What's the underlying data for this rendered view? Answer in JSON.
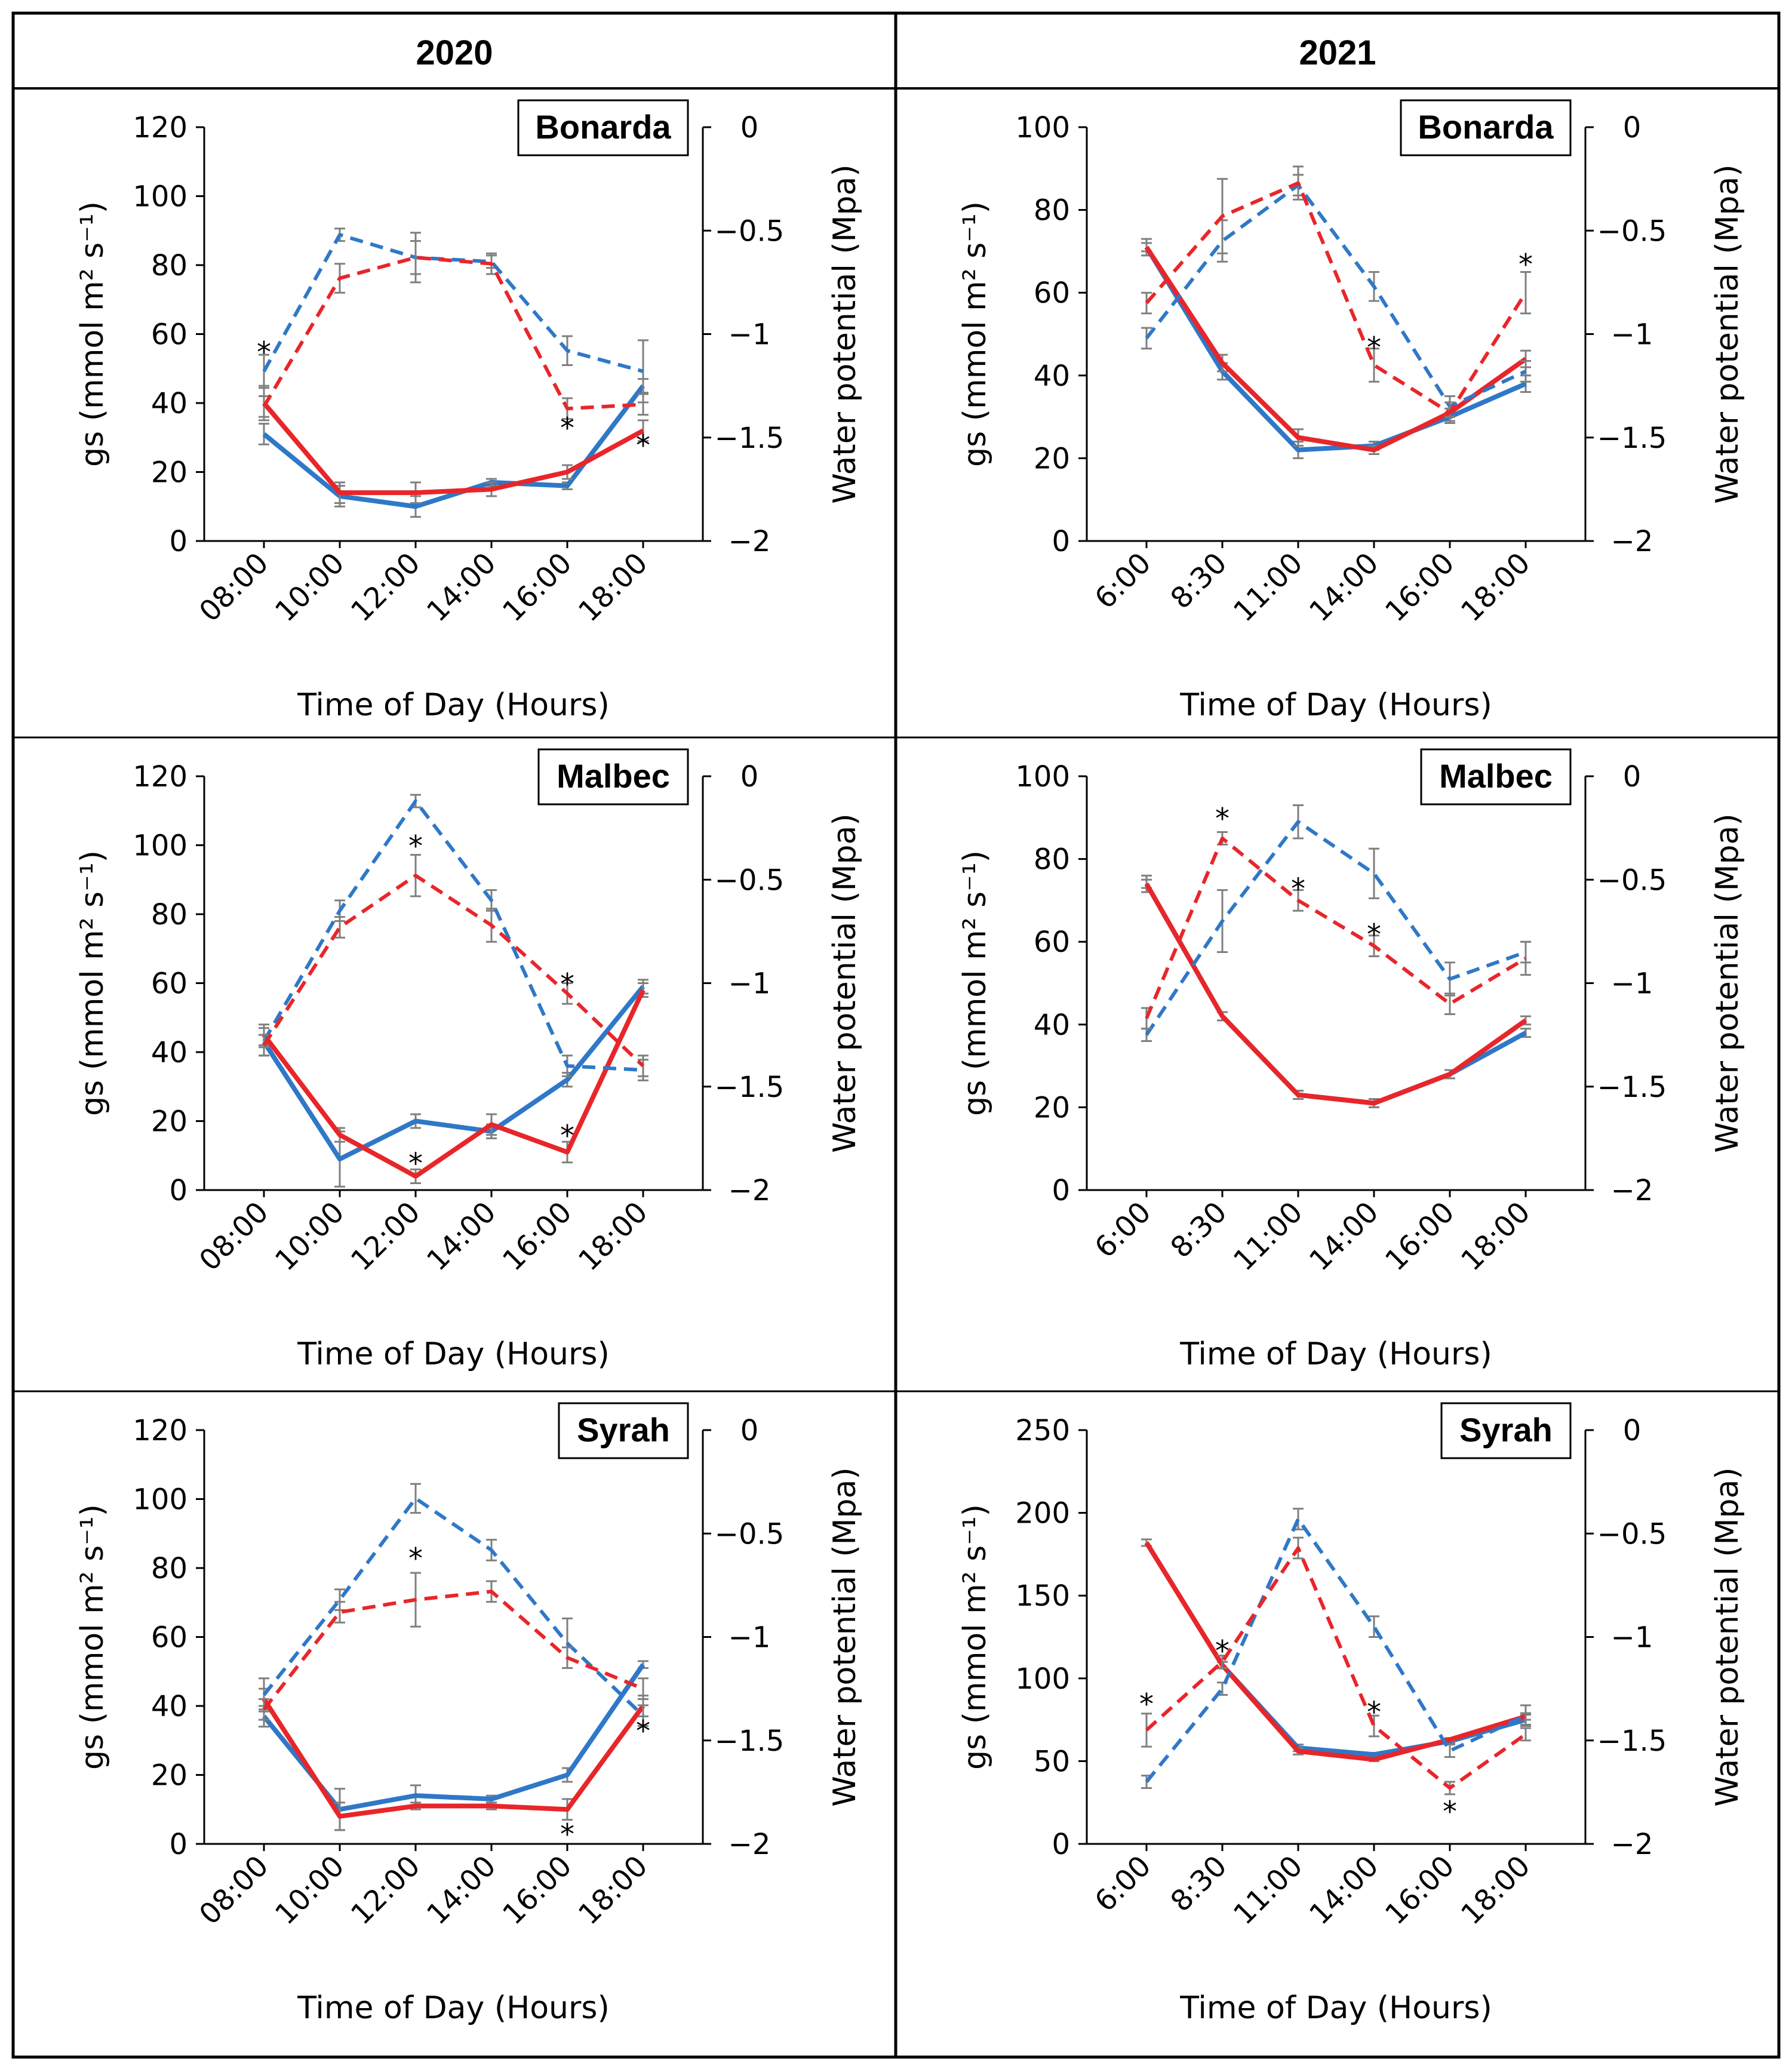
{
  "header": {
    "col1": "2020",
    "col2": "2021"
  },
  "colors": {
    "series_a": "#2f78c7",
    "series_b": "#e8262a",
    "error_bar": "#7f7f7f",
    "frame": "#000000"
  },
  "labels": {
    "x": "Time of Day (Hours)",
    "y_left": "gs (mmol m² s⁻¹)",
    "y_right": "Water potential (Mpa)",
    "star": "*"
  },
  "chart_data": [
    {
      "type": "line",
      "year": "2020",
      "title": "Bonarda",
      "categories": [
        "08:00",
        "10:00",
        "12:00",
        "14:00",
        "16:00",
        "18:00"
      ],
      "ylim": [
        0,
        120
      ],
      "yticks": [
        0,
        20,
        40,
        60,
        80,
        100,
        120
      ],
      "y2lim": [
        -2,
        0
      ],
      "y2ticks": [
        "0",
        "−0.5",
        "−1",
        "−1.5",
        "−2"
      ],
      "series": [
        {
          "name": "gs blue",
          "axis": "left",
          "style": "solid",
          "color": "#2f78c7",
          "values": [
            31,
            13,
            10,
            17,
            16,
            45
          ],
          "err": [
            3,
            3,
            3,
            1,
            1,
            2
          ]
        },
        {
          "name": "gs red",
          "axis": "left",
          "style": "solid",
          "color": "#e8262a",
          "values": [
            40,
            14,
            14,
            15,
            20,
            32
          ],
          "err": [
            5,
            3,
            3,
            2,
            2,
            3
          ]
        },
        {
          "name": "Ψ blue",
          "axis": "right",
          "style": "dashed",
          "color": "#2f78c7",
          "values": [
            -1.18,
            -0.52,
            -0.63,
            -0.65,
            -1.08,
            -1.18
          ],
          "err": [
            0.08,
            0.03,
            0.08,
            0.03,
            0.07,
            0.15
          ]
        },
        {
          "name": "Ψ red",
          "axis": "right",
          "style": "dashed",
          "color": "#e8262a",
          "values": [
            -1.35,
            -0.73,
            -0.63,
            -0.66,
            -1.36,
            -1.34
          ],
          "err": [
            0.05,
            0.07,
            0.12,
            0.05,
            0.05,
            0.05
          ]
        }
      ],
      "stars": [
        {
          "x": 0,
          "y": 55
        },
        {
          "x": 4,
          "y": 33
        },
        {
          "x": 5,
          "y": 28
        }
      ]
    },
    {
      "type": "line",
      "year": "2021",
      "title": "Bonarda",
      "categories": [
        "6:00",
        "8:30",
        "11:00",
        "14:00",
        "16:00",
        "18:00"
      ],
      "ylim": [
        0,
        100
      ],
      "yticks": [
        0,
        20,
        40,
        60,
        80,
        100
      ],
      "y2lim": [
        -2,
        0
      ],
      "y2ticks": [
        "0",
        "−0.5",
        "−1",
        "−1.5",
        "−2"
      ],
      "series": [
        {
          "name": "gs blue",
          "axis": "left",
          "style": "solid",
          "color": "#2f78c7",
          "values": [
            71,
            41,
            22,
            23,
            30,
            38
          ],
          "err": [
            2,
            2,
            2,
            1,
            1,
            2
          ]
        },
        {
          "name": "gs red",
          "axis": "left",
          "style": "solid",
          "color": "#e8262a",
          "values": [
            71,
            43,
            25,
            22,
            31,
            44
          ],
          "err": [
            1,
            2,
            2,
            1,
            1,
            2
          ]
        },
        {
          "name": "Ψ blue",
          "axis": "right",
          "style": "dashed",
          "color": "#2f78c7",
          "values": [
            -1.02,
            -0.55,
            -0.28,
            -0.77,
            -1.35,
            -1.18
          ],
          "err": [
            0.05,
            0.1,
            0.05,
            0.07,
            0.05,
            0.05
          ]
        },
        {
          "name": "Ψ red",
          "axis": "right",
          "style": "dashed",
          "color": "#e8262a",
          "values": [
            -0.85,
            -0.43,
            -0.27,
            -1.15,
            -1.38,
            -0.8
          ],
          "err": [
            0.05,
            0.18,
            0.08,
            0.08,
            0.05,
            0.1
          ]
        }
      ],
      "stars": [
        {
          "x": 3,
          "y": 47
        },
        {
          "x": 5,
          "y": 67
        }
      ]
    },
    {
      "type": "line",
      "year": "2020",
      "title": "Malbec",
      "categories": [
        "08:00",
        "10:00",
        "12:00",
        "14:00",
        "16:00",
        "18:00"
      ],
      "ylim": [
        0,
        120
      ],
      "yticks": [
        0,
        20,
        40,
        60,
        80,
        100,
        120
      ],
      "y2lim": [
        -2,
        0
      ],
      "y2ticks": [
        "0",
        "−0.5",
        "−1",
        "−1.5",
        "−2"
      ],
      "series": [
        {
          "name": "gs blue",
          "axis": "left",
          "style": "solid",
          "color": "#2f78c7",
          "values": [
            43,
            9,
            20,
            17,
            32,
            59
          ],
          "err": [
            4,
            8,
            2,
            2,
            2,
            2
          ]
        },
        {
          "name": "gs red",
          "axis": "left",
          "style": "solid",
          "color": "#e8262a",
          "values": [
            45,
            16,
            4,
            19,
            11,
            58
          ],
          "err": [
            3,
            2,
            2,
            3,
            3,
            2
          ]
        },
        {
          "name": "Ψ blue",
          "axis": "right",
          "style": "dashed",
          "color": "#2f78c7",
          "values": [
            -1.28,
            -0.65,
            -0.12,
            -0.6,
            -1.4,
            -1.42
          ],
          "err": [
            0.03,
            0.05,
            0.03,
            0.05,
            0.05,
            0.05
          ]
        },
        {
          "name": "Ψ red",
          "axis": "right",
          "style": "dashed",
          "color": "#e8262a",
          "values": [
            -1.3,
            -0.73,
            -0.48,
            -0.72,
            -1.05,
            -1.4
          ],
          "err": [
            0.05,
            0.05,
            0.1,
            0.08,
            0.05,
            0.05
          ]
        }
      ],
      "stars": [
        {
          "x": 2,
          "y": 100
        },
        {
          "x": 4,
          "y": 60
        },
        {
          "x": 4,
          "y": 16
        },
        {
          "x": 2,
          "y": 8
        }
      ]
    },
    {
      "type": "line",
      "year": "2021",
      "title": "Malbec",
      "categories": [
        "6:00",
        "8:30",
        "11:00",
        "14:00",
        "16:00",
        "18:00"
      ],
      "ylim": [
        0,
        100
      ],
      "yticks": [
        0,
        20,
        40,
        60,
        80,
        100
      ],
      "y2lim": [
        -2,
        0
      ],
      "y2ticks": [
        "0",
        "−0.5",
        "−1",
        "−1.5",
        "−2"
      ],
      "series": [
        {
          "name": "gs blue",
          "axis": "left",
          "style": "solid",
          "color": "#2f78c7",
          "values": [
            74,
            42,
            23,
            21,
            28,
            38
          ],
          "err": [
            2,
            1,
            1,
            1,
            1,
            1
          ]
        },
        {
          "name": "gs red",
          "axis": "left",
          "style": "solid",
          "color": "#e8262a",
          "values": [
            74,
            42,
            23,
            21,
            28,
            41
          ],
          "err": [
            1,
            1,
            1,
            1,
            1,
            1
          ]
        },
        {
          "name": "Ψ blue",
          "axis": "right",
          "style": "dashed",
          "color": "#2f78c7",
          "values": [
            -1.25,
            -0.7,
            -0.22,
            -0.47,
            -0.98,
            -0.85
          ],
          "err": [
            0.03,
            0.15,
            0.08,
            0.12,
            0.08,
            0.05
          ]
        },
        {
          "name": "Ψ red",
          "axis": "right",
          "style": "dashed",
          "color": "#e8262a",
          "values": [
            -1.17,
            -0.3,
            -0.6,
            -0.82,
            -1.1,
            -0.88
          ],
          "err": [
            0.05,
            0.03,
            0.05,
            0.05,
            0.05,
            0.08
          ]
        }
      ],
      "stars": [
        {
          "x": 1,
          "y": 90
        },
        {
          "x": 2,
          "y": 73
        },
        {
          "x": 3,
          "y": 62
        }
      ]
    },
    {
      "type": "line",
      "year": "2020",
      "title": "Syrah",
      "categories": [
        "08:00",
        "10:00",
        "12:00",
        "14:00",
        "16:00",
        "18:00"
      ],
      "ylim": [
        0,
        120
      ],
      "yticks": [
        0,
        20,
        40,
        60,
        80,
        100,
        120
      ],
      "y2lim": [
        -2,
        0
      ],
      "y2ticks": [
        "0",
        "−0.5",
        "−1",
        "−1.5",
        "−2"
      ],
      "series": [
        {
          "name": "gs blue",
          "axis": "left",
          "style": "solid",
          "color": "#2f78c7",
          "values": [
            37,
            10,
            14,
            13,
            20,
            52
          ],
          "err": [
            3,
            6,
            3,
            1,
            2,
            1
          ]
        },
        {
          "name": "gs red",
          "axis": "left",
          "style": "solid",
          "color": "#e8262a",
          "values": [
            42,
            8,
            11,
            11,
            10,
            40
          ],
          "err": [
            3,
            4,
            1,
            1,
            3,
            3
          ]
        },
        {
          "name": "Ψ blue",
          "axis": "right",
          "style": "dashed",
          "color": "#2f78c7",
          "values": [
            -1.28,
            -0.82,
            -0.33,
            -0.58,
            -1.03,
            -1.38
          ],
          "err": [
            0.08,
            0.05,
            0.07,
            0.05,
            0.12,
            0.05
          ]
        },
        {
          "name": "Ψ red",
          "axis": "right",
          "style": "dashed",
          "color": "#e8262a",
          "values": [
            -1.35,
            -0.88,
            -0.82,
            -0.78,
            -1.1,
            -1.25
          ],
          "err": [
            0.05,
            0.05,
            0.13,
            0.05,
            0.05,
            0.05
          ]
        }
      ],
      "stars": [
        {
          "x": 2,
          "y": 83
        },
        {
          "x": 5,
          "y": 33
        },
        {
          "x": 4,
          "y": 3
        }
      ]
    },
    {
      "type": "line",
      "year": "2021",
      "title": "Syrah",
      "categories": [
        "6:00",
        "8:30",
        "11:00",
        "14:00",
        "16:00",
        "18:00"
      ],
      "ylim": [
        0,
        250
      ],
      "yticks": [
        0,
        50,
        100,
        150,
        200,
        250
      ],
      "y2lim": [
        -2,
        0
      ],
      "y2ticks": [
        "0",
        "−0.5",
        "−1",
        "−1.5",
        "−2"
      ],
      "series": [
        {
          "name": "gs blue",
          "axis": "left",
          "style": "solid",
          "color": "#2f78c7",
          "values": [
            182,
            108,
            58,
            54,
            62,
            75
          ],
          "err": [
            2,
            2,
            2,
            1,
            1,
            3
          ]
        },
        {
          "name": "gs red",
          "axis": "left",
          "style": "solid",
          "color": "#e8262a",
          "values": [
            182,
            108,
            56,
            51,
            63,
            77
          ],
          "err": [
            2,
            2,
            2,
            1,
            1,
            2
          ]
        },
        {
          "name": "Ψ blue",
          "axis": "right",
          "style": "dashed",
          "color": "#2f78c7",
          "values": [
            -1.7,
            -1.25,
            -0.43,
            -0.95,
            -1.55,
            -1.38
          ],
          "err": [
            0.03,
            0.03,
            0.05,
            0.05,
            0.03,
            0.05
          ]
        },
        {
          "name": "Ψ red",
          "axis": "right",
          "style": "dashed",
          "color": "#e8262a",
          "values": [
            -1.45,
            -1.12,
            -0.57,
            -1.43,
            -1.73,
            -1.47
          ],
          "err": [
            0.08,
            0.03,
            0.05,
            0.05,
            0.03,
            0.03
          ]
        }
      ],
      "stars": [
        {
          "x": 0,
          "y": 85
        },
        {
          "x": 1,
          "y": 117
        },
        {
          "x": 3,
          "y": 80
        },
        {
          "x": 4,
          "y": 20
        }
      ]
    }
  ]
}
